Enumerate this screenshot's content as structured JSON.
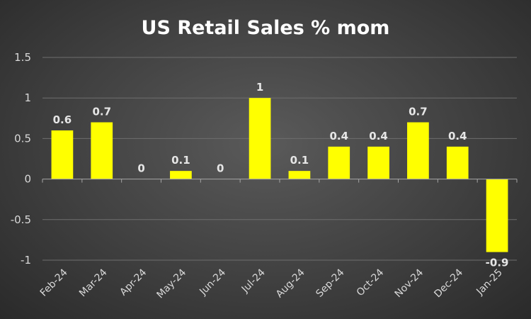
{
  "chart_data": {
    "type": "bar",
    "title": "US Retail Sales % mom",
    "categories": [
      "Feb-24",
      "Mar-24",
      "Apr-24",
      "May-24",
      "Jun-24",
      "Jul-24",
      "Aug-24",
      "Sep-24",
      "Oct-24",
      "Nov-24",
      "Dec-24",
      "Jan-25"
    ],
    "values": [
      0.6,
      0.7,
      0,
      0.1,
      0,
      1,
      0.1,
      0.4,
      0.4,
      0.7,
      0.4,
      -0.9
    ],
    "value_labels": [
      "0.6",
      "0.7",
      "0",
      "0.1",
      "0",
      "1",
      "0.1",
      "0.4",
      "0.4",
      "0.7",
      "0.4",
      "-0.9"
    ],
    "yticks": [
      1.5,
      1,
      0.5,
      0,
      -0.5,
      -1
    ],
    "ytick_labels": [
      "1.5",
      "1",
      "0.5",
      "0",
      "-0.5",
      "-1"
    ],
    "ylim": [
      -1,
      1.5
    ],
    "grid": true,
    "legend": "none",
    "colors": {
      "bar": "#ffff00",
      "background": "#404040",
      "gridline": "#6e6e6e",
      "text": "#d9d9d9"
    }
  }
}
